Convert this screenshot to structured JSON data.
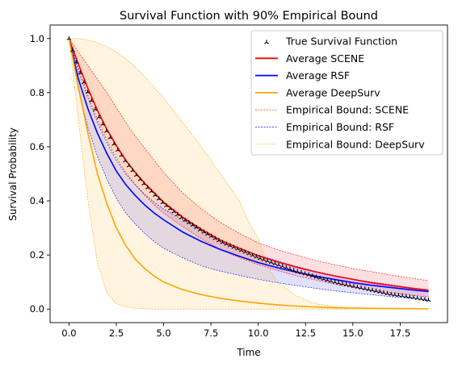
{
  "chart_data": {
    "type": "line",
    "title": "Survival Function with 90% Empirical Bound",
    "xlabel": "Time",
    "ylabel": "Survival Probability",
    "xlim": [
      -1.0,
      20.0
    ],
    "ylim": [
      -0.05,
      1.05
    ],
    "x_ticks": [
      0.0,
      2.5,
      5.0,
      7.5,
      10.0,
      12.5,
      15.0,
      17.5
    ],
    "x_tick_labels": [
      "0.0",
      "2.5",
      "5.0",
      "7.5",
      "10.0",
      "12.5",
      "15.0",
      "17.5"
    ],
    "y_ticks": [
      0.0,
      0.2,
      0.4,
      0.6,
      0.8,
      1.0
    ],
    "y_tick_labels": [
      "0.0",
      "0.2",
      "0.4",
      "0.6",
      "0.8",
      "1.0"
    ],
    "grid": false,
    "legend_position": "top-right",
    "series": [
      {
        "name": "True Survival Function",
        "kind": "markers",
        "color": "#000000",
        "x": [
          0,
          0.5,
          1,
          1.5,
          2,
          2.5,
          3,
          3.5,
          4,
          4.5,
          5,
          6,
          7,
          8,
          9,
          10,
          11,
          12,
          13,
          14,
          15,
          16,
          17,
          18,
          19
        ],
        "y": [
          1.0,
          0.89,
          0.8,
          0.72,
          0.655,
          0.595,
          0.545,
          0.5,
          0.46,
          0.425,
          0.39,
          0.335,
          0.29,
          0.25,
          0.22,
          0.19,
          0.165,
          0.14,
          0.12,
          0.1,
          0.085,
          0.07,
          0.055,
          0.045,
          0.033
        ]
      },
      {
        "name": "Average SCENE",
        "kind": "line",
        "color": "#ff0000",
        "x": [
          0,
          0.5,
          1,
          1.5,
          2,
          2.5,
          3,
          3.5,
          4,
          4.5,
          5,
          6,
          7,
          8,
          9,
          10,
          11,
          12,
          13,
          14,
          15,
          16,
          17,
          18,
          19
        ],
        "y": [
          1.0,
          0.905,
          0.815,
          0.735,
          0.665,
          0.605,
          0.55,
          0.505,
          0.465,
          0.43,
          0.395,
          0.34,
          0.295,
          0.255,
          0.225,
          0.197,
          0.175,
          0.155,
          0.138,
          0.123,
          0.11,
          0.097,
          0.087,
          0.078,
          0.07
        ]
      },
      {
        "name": "Average RSF",
        "kind": "line",
        "color": "#0000ff",
        "x": [
          0,
          0.5,
          1,
          1.5,
          2,
          2.5,
          3,
          3.5,
          4,
          4.5,
          5,
          6,
          7,
          8,
          9,
          10,
          11,
          12,
          13,
          14,
          15,
          16,
          17,
          18,
          19
        ],
        "y": [
          1.0,
          0.85,
          0.74,
          0.65,
          0.575,
          0.51,
          0.46,
          0.42,
          0.385,
          0.355,
          0.33,
          0.285,
          0.25,
          0.22,
          0.195,
          0.172,
          0.153,
          0.137,
          0.122,
          0.11,
          0.098,
          0.088,
          0.08,
          0.072,
          0.065
        ]
      },
      {
        "name": "Average DeepSurv",
        "kind": "line",
        "color": "#ffa500",
        "x": [
          0,
          0.5,
          1,
          1.5,
          2,
          2.5,
          3,
          3.5,
          4,
          4.5,
          5,
          6,
          7,
          8,
          9,
          10,
          11,
          12,
          13,
          14,
          15,
          16,
          17,
          18,
          19
        ],
        "y": [
          1.0,
          0.82,
          0.65,
          0.5,
          0.39,
          0.3,
          0.235,
          0.185,
          0.15,
          0.122,
          0.1,
          0.072,
          0.053,
          0.04,
          0.03,
          0.022,
          0.016,
          0.011,
          0.008,
          0.005,
          0.004,
          0.003,
          0.002,
          0.002,
          0.001
        ]
      }
    ],
    "bounds": [
      {
        "name": "Empirical Bound: SCENE",
        "color": "#ff0000",
        "fill": "rgba(255,0,0,0.12)",
        "x": [
          0,
          0.5,
          1,
          1.5,
          2,
          2.5,
          3,
          3.5,
          4,
          4.5,
          5,
          6,
          7,
          8,
          9,
          10,
          11,
          12,
          13,
          14,
          15,
          16,
          17,
          18,
          19
        ],
        "upper": [
          1.0,
          0.95,
          0.9,
          0.85,
          0.8,
          0.745,
          0.69,
          0.64,
          0.595,
          0.55,
          0.505,
          0.43,
          0.37,
          0.32,
          0.28,
          0.245,
          0.22,
          0.2,
          0.18,
          0.165,
          0.15,
          0.138,
          0.126,
          0.115,
          0.105
        ],
        "lower": [
          1.0,
          0.89,
          0.79,
          0.7,
          0.625,
          0.56,
          0.505,
          0.46,
          0.42,
          0.385,
          0.355,
          0.305,
          0.26,
          0.22,
          0.19,
          0.165,
          0.143,
          0.123,
          0.108,
          0.093,
          0.08,
          0.07,
          0.06,
          0.052,
          0.045
        ]
      },
      {
        "name": "Empirical Bound: RSF",
        "color": "#0000ff",
        "fill": "rgba(0,0,255,0.12)",
        "x": [
          0,
          0.5,
          1,
          1.5,
          2,
          2.5,
          3,
          3.5,
          4,
          4.5,
          5,
          6,
          7,
          8,
          9,
          10,
          11,
          12,
          13,
          14,
          15,
          16,
          17,
          18,
          19
        ],
        "upper": [
          1.0,
          0.88,
          0.78,
          0.69,
          0.615,
          0.55,
          0.5,
          0.46,
          0.425,
          0.395,
          0.37,
          0.33,
          0.29,
          0.255,
          0.225,
          0.2,
          0.178,
          0.158,
          0.14,
          0.125,
          0.11,
          0.1,
          0.09,
          0.08,
          0.07
        ],
        "lower": [
          1.0,
          0.81,
          0.67,
          0.565,
          0.48,
          0.41,
          0.355,
          0.315,
          0.28,
          0.25,
          0.225,
          0.19,
          0.16,
          0.14,
          0.125,
          0.11,
          0.098,
          0.087,
          0.077,
          0.068,
          0.06,
          0.053,
          0.046,
          0.04,
          0.035
        ]
      },
      {
        "name": "Empirical Bound: DeepSurv",
        "color": "#ffa500",
        "fill": "rgba(255,165,0,0.12)",
        "x": [
          0,
          0.5,
          1,
          1.5,
          2,
          2.5,
          3,
          3.5,
          4,
          4.5,
          5,
          5.5,
          6,
          6.5,
          7,
          7.5,
          8,
          8.5,
          9,
          9.5,
          10,
          10.5,
          11,
          12,
          13,
          14,
          15,
          16,
          17,
          18,
          19
        ],
        "upper": [
          1.0,
          1.0,
          0.995,
          0.985,
          0.97,
          0.95,
          0.925,
          0.895,
          0.86,
          0.82,
          0.78,
          0.735,
          0.69,
          0.645,
          0.6,
          0.55,
          0.5,
          0.45,
          0.4,
          0.32,
          0.26,
          0.16,
          0.1,
          0.05,
          0.02,
          0.01,
          0.005,
          0.002,
          0.001,
          0.0005,
          0.0
        ],
        "lower": [
          1.0,
          0.7,
          0.4,
          0.17,
          0.06,
          0.02,
          0.008,
          0.003,
          0.001,
          0.0,
          0.0,
          0.0,
          0.0,
          0.0,
          0.0,
          0.0,
          0.0,
          0.0,
          0.0,
          0.0,
          0.0,
          0.0,
          0.0,
          0.0,
          0.0,
          0.0,
          0.0,
          0.0,
          0.0,
          0.0,
          0.0
        ]
      }
    ]
  }
}
